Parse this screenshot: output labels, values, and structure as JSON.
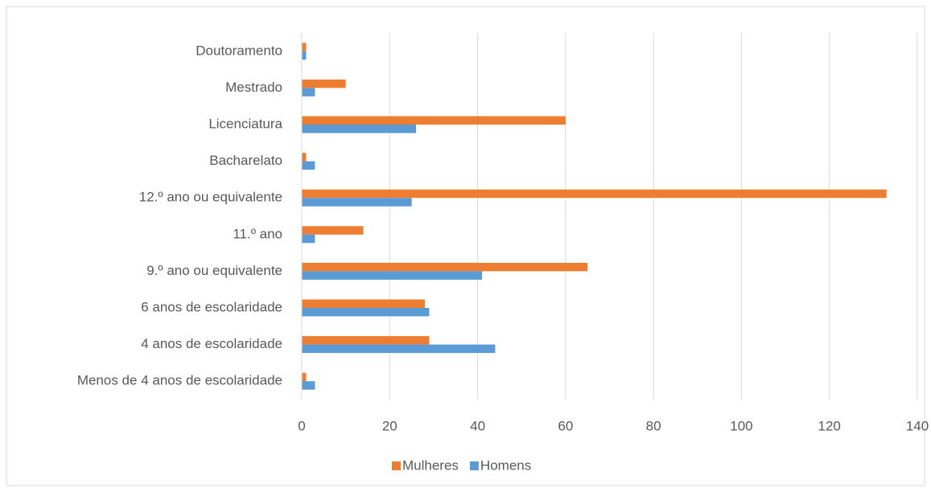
{
  "chart_data": {
    "type": "bar",
    "orientation": "horizontal",
    "categories": [
      "Doutoramento",
      "Mestrado",
      "Licenciatura",
      "Bacharelato",
      "12.º ano ou equivalente",
      "11.º ano",
      "9.º ano ou equivalente",
      "6 anos de escolaridade",
      "4 anos de escolaridade",
      "Menos de 4 anos de escolaridade"
    ],
    "series": [
      {
        "name": "Mulheres",
        "color": "#ed7d31",
        "values": [
          1,
          10,
          60,
          1,
          133,
          14,
          65,
          28,
          29,
          1
        ]
      },
      {
        "name": "Homens",
        "color": "#5b9bd5",
        "values": [
          1,
          3,
          26,
          3,
          25,
          3,
          41,
          29,
          44,
          3
        ]
      }
    ],
    "xlim": [
      0,
      140
    ],
    "xticks": [
      0,
      20,
      40,
      60,
      80,
      100,
      120,
      140
    ],
    "grid": true,
    "legend": "bottom"
  }
}
